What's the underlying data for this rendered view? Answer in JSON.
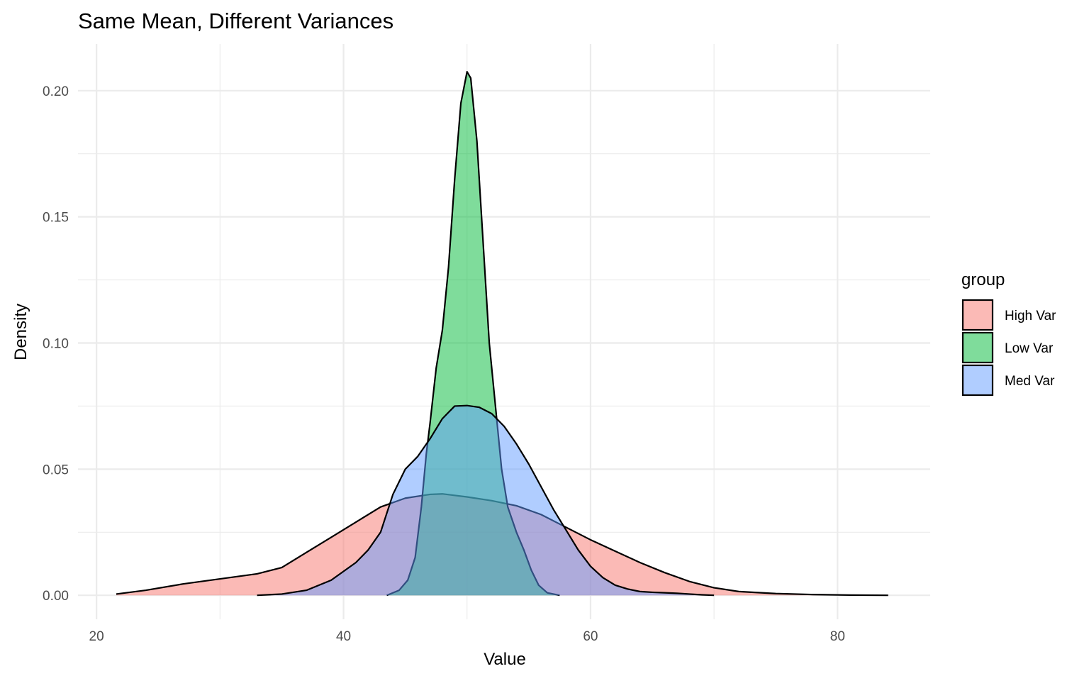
{
  "chart_data": {
    "type": "area",
    "title": "Same Mean, Different Variances",
    "xlabel": "Value",
    "ylabel": "Density",
    "xlim": [
      18.5,
      87.5
    ],
    "ylim": [
      -0.0095,
      0.2185
    ],
    "x_ticks": [
      20,
      40,
      60,
      80
    ],
    "x_tick_labels": [
      "20",
      "40",
      "60",
      "80"
    ],
    "y_ticks": [
      0,
      0.05,
      0.1,
      0.15,
      0.2
    ],
    "y_tick_labels": [
      "0.00",
      "0.05",
      "0.10",
      "0.15",
      "0.20"
    ],
    "grid": true,
    "legend": {
      "title": "group",
      "position": "right"
    },
    "series": [
      {
        "name": "High Var",
        "color": "#F8766D",
        "points": [
          [
            21.6,
            0.0005
          ],
          [
            24,
            0.002
          ],
          [
            27,
            0.0045
          ],
          [
            30,
            0.0065
          ],
          [
            33,
            0.0085
          ],
          [
            35,
            0.011
          ],
          [
            37,
            0.017
          ],
          [
            39,
            0.023
          ],
          [
            41,
            0.029
          ],
          [
            43,
            0.035
          ],
          [
            45,
            0.0385
          ],
          [
            47,
            0.04
          ],
          [
            48,
            0.0402
          ],
          [
            50,
            0.039
          ],
          [
            52,
            0.0375
          ],
          [
            54,
            0.0355
          ],
          [
            56,
            0.032
          ],
          [
            58,
            0.027
          ],
          [
            60,
            0.022
          ],
          [
            62,
            0.0175
          ],
          [
            64,
            0.013
          ],
          [
            66,
            0.009
          ],
          [
            68,
            0.0055
          ],
          [
            70,
            0.003
          ],
          [
            72,
            0.0015
          ],
          [
            75,
            0.0007
          ],
          [
            78,
            0.0003
          ],
          [
            81,
            0.0001
          ],
          [
            84.1,
            0.0
          ]
        ]
      },
      {
        "name": "Low Var",
        "color": "#00BA38",
        "points": [
          [
            43.5,
            0.0
          ],
          [
            44.5,
            0.002
          ],
          [
            45.2,
            0.006
          ],
          [
            45.8,
            0.015
          ],
          [
            46.3,
            0.035
          ],
          [
            46.7,
            0.056
          ],
          [
            47,
            0.068
          ],
          [
            47.5,
            0.09
          ],
          [
            48,
            0.105
          ],
          [
            48.5,
            0.13
          ],
          [
            49,
            0.165
          ],
          [
            49.5,
            0.195
          ],
          [
            50,
            0.2075
          ],
          [
            50.3,
            0.205
          ],
          [
            50.8,
            0.18
          ],
          [
            51.3,
            0.14
          ],
          [
            51.8,
            0.1
          ],
          [
            52.3,
            0.075
          ],
          [
            52.8,
            0.05
          ],
          [
            53.3,
            0.035
          ],
          [
            54,
            0.025
          ],
          [
            54.6,
            0.018
          ],
          [
            55.2,
            0.01
          ],
          [
            55.8,
            0.004
          ],
          [
            56.5,
            0.001
          ],
          [
            57.5,
            0.0
          ]
        ]
      },
      {
        "name": "Med Var",
        "color": "#619CFF",
        "points": [
          [
            33,
            0.0
          ],
          [
            35,
            0.0005
          ],
          [
            37,
            0.002
          ],
          [
            39,
            0.006
          ],
          [
            41,
            0.013
          ],
          [
            42,
            0.018
          ],
          [
            43,
            0.025
          ],
          [
            44,
            0.04
          ],
          [
            45,
            0.05
          ],
          [
            46,
            0.055
          ],
          [
            47,
            0.062
          ],
          [
            48,
            0.07
          ],
          [
            49,
            0.075
          ],
          [
            50,
            0.0752
          ],
          [
            51,
            0.0745
          ],
          [
            52,
            0.072
          ],
          [
            53,
            0.067
          ],
          [
            54,
            0.06
          ],
          [
            55,
            0.052
          ],
          [
            56,
            0.043
          ],
          [
            57,
            0.034
          ],
          [
            58,
            0.026
          ],
          [
            59,
            0.018
          ],
          [
            60,
            0.0115
          ],
          [
            61,
            0.007
          ],
          [
            62,
            0.004
          ],
          [
            63,
            0.0025
          ],
          [
            64,
            0.0015
          ],
          [
            65,
            0.0012
          ],
          [
            66,
            0.001
          ],
          [
            67,
            0.0008
          ],
          [
            68,
            0.0005
          ],
          [
            69,
            0.0002
          ],
          [
            70,
            0.0
          ]
        ]
      }
    ]
  }
}
